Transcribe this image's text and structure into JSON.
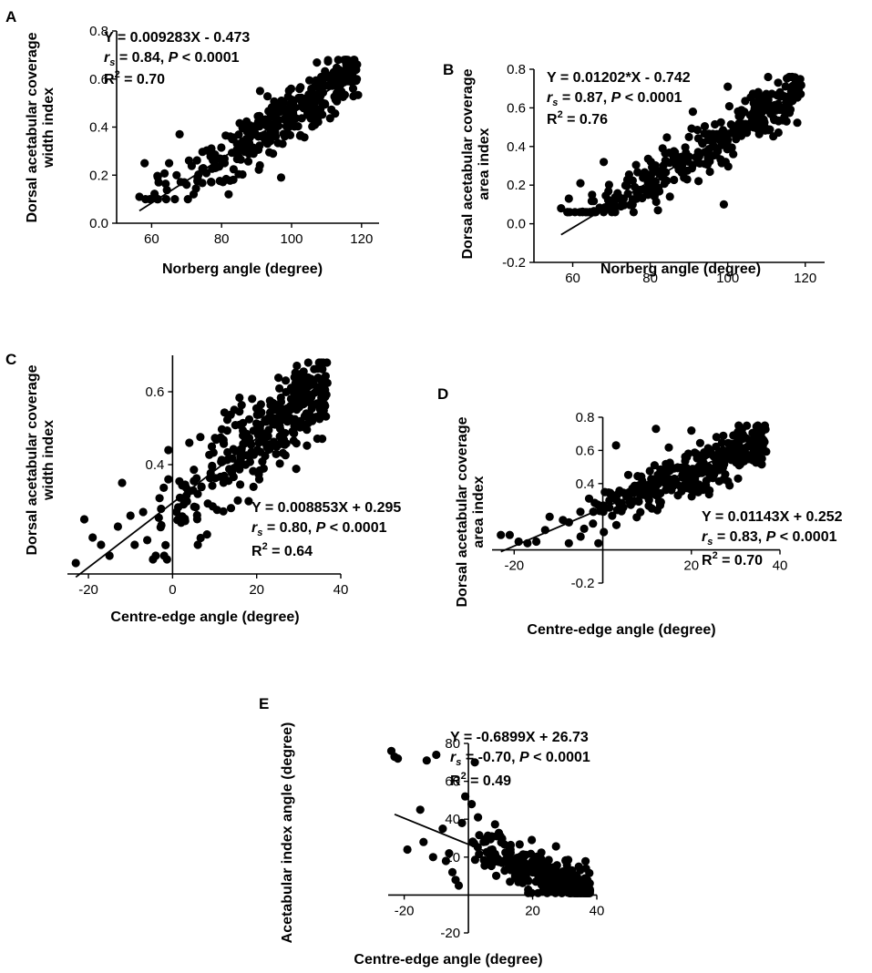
{
  "figure": {
    "panels": [
      "A",
      "B",
      "C",
      "D",
      "E"
    ]
  },
  "chart_data": [
    {
      "panel": "A",
      "type": "scatter",
      "xlabel": "Norberg angle (degree)",
      "ylabel_line1": "Dorsal acetabular coverage",
      "ylabel_line2": "width index",
      "xlim": [
        50,
        125
      ],
      "ylim": [
        0,
        0.8
      ],
      "xticks": [
        60,
        80,
        100,
        120
      ],
      "yticks": [
        0.0,
        0.2,
        0.4,
        0.6,
        0.8
      ],
      "ytick_labels": [
        "0.0",
        "0.2",
        "0.4",
        "0.6",
        "0.8"
      ],
      "regression": {
        "slope": 0.009283,
        "intercept": -0.473,
        "x_range": [
          56.5,
          119
        ]
      },
      "annotation": {
        "equation": "Y = 0.009283X - 0.473",
        "rs": "= 0.84, ",
        "p": "< 0.0001",
        "r2": "= 0.70"
      },
      "points": {
        "n": 330,
        "x_min": 57,
        "x_max": 119,
        "noise": 0.06,
        "y_clip": [
          0.1,
          0.68
        ]
      },
      "outliers": [
        [
          56.5,
          0.11
        ],
        [
          58,
          0.25
        ],
        [
          68,
          0.37
        ],
        [
          65,
          0.25
        ],
        [
          72,
          0.12
        ],
        [
          70,
          0.16
        ],
        [
          62,
          0.17
        ],
        [
          82,
          0.12
        ],
        [
          91,
          0.55
        ],
        [
          97,
          0.19
        ]
      ]
    },
    {
      "panel": "B",
      "type": "scatter",
      "xlabel": "Norberg angle (degree)",
      "ylabel_line1": "Dorsal acetabular coverage",
      "ylabel_line2": "area index",
      "xlim": [
        50,
        125
      ],
      "ylim": [
        -0.2,
        0.8
      ],
      "xticks": [
        60,
        80,
        100,
        120
      ],
      "yticks": [
        -0.2,
        0.0,
        0.2,
        0.4,
        0.6,
        0.8
      ],
      "ytick_labels": [
        "-0.2",
        "0.0",
        "0.2",
        "0.4",
        "0.6",
        "0.8"
      ],
      "regression": {
        "slope": 0.01202,
        "intercept": -0.742,
        "x_range": [
          57,
          119
        ]
      },
      "annotation": {
        "equation": "Y = 0.01202*X - 0.742",
        "rs": "= 0.87, ",
        "p": "< 0.0001",
        "r2": "= 0.76"
      },
      "points": {
        "n": 330,
        "x_min": 57,
        "x_max": 119,
        "noise": 0.065,
        "y_clip": [
          0.06,
          0.76
        ]
      },
      "outliers": [
        [
          57,
          0.08
        ],
        [
          59,
          0.13
        ],
        [
          62,
          0.21
        ],
        [
          65,
          0.15
        ],
        [
          68,
          0.32
        ],
        [
          71,
          0.09
        ],
        [
          76,
          0.19
        ],
        [
          82,
          0.07
        ],
        [
          91,
          0.58
        ],
        [
          99,
          0.1
        ],
        [
          100,
          0.71
        ],
        [
          113,
          0.73
        ]
      ]
    },
    {
      "panel": "C",
      "type": "scatter",
      "xlabel": "Centre-edge angle (degree)",
      "ylabel_line1": "Dorsal acetabular coverage",
      "ylabel_line2": "width index",
      "xlim": [
        -25,
        40
      ],
      "ylim": [
        0.1,
        0.7
      ],
      "xticks": [
        -20,
        0,
        20,
        40
      ],
      "yticks": [
        0.4,
        0.6
      ],
      "ytick_labels": [
        "0.4",
        "0.6"
      ],
      "axis_cross": {
        "x": 0,
        "y": 0.1
      },
      "regression": {
        "slope": 0.008853,
        "intercept": 0.295,
        "x_range": [
          -23,
          37
        ]
      },
      "annotation": {
        "equation": "Y = 0.008853X + 0.295",
        "rs": "= 0.80, ",
        "p": "< 0.0001",
        "r2": "= 0.64"
      },
      "points": {
        "n": 320,
        "x_min": -8,
        "x_max": 37,
        "noise": 0.06,
        "y_clip": [
          0.14,
          0.68
        ]
      },
      "outliers": [
        [
          -23,
          0.13
        ],
        [
          -21,
          0.25
        ],
        [
          -19,
          0.2
        ],
        [
          -17,
          0.18
        ],
        [
          -15,
          0.15
        ],
        [
          -12,
          0.35
        ],
        [
          -13,
          0.23
        ],
        [
          -10,
          0.26
        ],
        [
          -9,
          0.18
        ],
        [
          -7,
          0.27
        ],
        [
          -4,
          0.15
        ],
        [
          -2,
          0.15
        ],
        [
          -1,
          0.44
        ],
        [
          4,
          0.46
        ],
        [
          6,
          0.18
        ]
      ]
    },
    {
      "panel": "D",
      "type": "scatter",
      "xlabel": "Centre-edge angle (degree)",
      "ylabel_line1": "Dorsal acetabular coverage",
      "ylabel_line2": "area index",
      "xlim": [
        -25,
        40
      ],
      "ylim": [
        -0.2,
        0.8
      ],
      "xticks": [
        -20,
        20,
        40
      ],
      "yticks": [
        -0.2,
        0.4,
        0.6,
        0.8
      ],
      "ytick_labels": [
        "-0.2",
        "0.4",
        "0.6",
        "0.8"
      ],
      "axis_cross": {
        "x": 0,
        "y": 0.0
      },
      "regression": {
        "slope": 0.01143,
        "intercept": 0.252,
        "x_range": [
          -23,
          37
        ]
      },
      "annotation": {
        "equation": "Y = 0.01143X + 0.252",
        "rs": "= 0.83, ",
        "p": "< 0.0001",
        "r2": "= 0.70"
      },
      "points": {
        "n": 320,
        "x_min": -8,
        "x_max": 37,
        "noise": 0.075,
        "y_clip": [
          0.04,
          0.75
        ]
      },
      "outliers": [
        [
          -23,
          0.09
        ],
        [
          -21,
          0.09
        ],
        [
          -19,
          0.05
        ],
        [
          -17,
          0.04
        ],
        [
          -15,
          0.05
        ],
        [
          -13,
          0.12
        ],
        [
          -12,
          0.2
        ],
        [
          -9,
          0.18
        ],
        [
          -5,
          0.08
        ],
        [
          -1,
          0.04
        ],
        [
          3,
          0.63
        ],
        [
          12,
          0.73
        ],
        [
          20,
          0.72
        ]
      ]
    },
    {
      "panel": "E",
      "type": "scatter",
      "xlabel": "Centre-edge angle (degree)",
      "ylabel_line1": "Acetabular index angle (degree)",
      "ylabel_line2": "",
      "xlim": [
        -25,
        40
      ],
      "ylim": [
        -20,
        80
      ],
      "xticks": [
        -20,
        20,
        40
      ],
      "yticks": [
        -20,
        20,
        40,
        60,
        80
      ],
      "ytick_labels": [
        "-20",
        "20",
        "40",
        "60",
        "80"
      ],
      "axis_cross": {
        "x": 0,
        "y": 0
      },
      "regression": {
        "slope": -0.6899,
        "intercept": 26.73,
        "x_range": [
          -23,
          37
        ]
      },
      "annotation": {
        "equation": "Y = -0.6899X + 26.73",
        "rs": "= -0.70, ",
        "p": "< 0.0001",
        "r2": "= 0.49"
      },
      "points": {
        "n": 320,
        "x_min": 0,
        "x_max": 38,
        "noise": 6,
        "y_clip": [
          1,
          45
        ]
      },
      "outliers": [
        [
          -24,
          76
        ],
        [
          -22,
          72
        ],
        [
          -13,
          71
        ],
        [
          -10,
          74
        ],
        [
          -23,
          73
        ],
        [
          -15,
          45
        ],
        [
          -19,
          24
        ],
        [
          -14,
          28
        ],
        [
          -11,
          20
        ],
        [
          -8,
          35
        ],
        [
          -7,
          18
        ],
        [
          -6,
          22
        ],
        [
          -5,
          12
        ],
        [
          -4,
          8
        ],
        [
          -3,
          5
        ],
        [
          -2,
          38
        ],
        [
          1,
          48
        ],
        [
          2,
          70
        ],
        [
          3,
          41
        ],
        [
          -1,
          52
        ]
      ]
    }
  ]
}
